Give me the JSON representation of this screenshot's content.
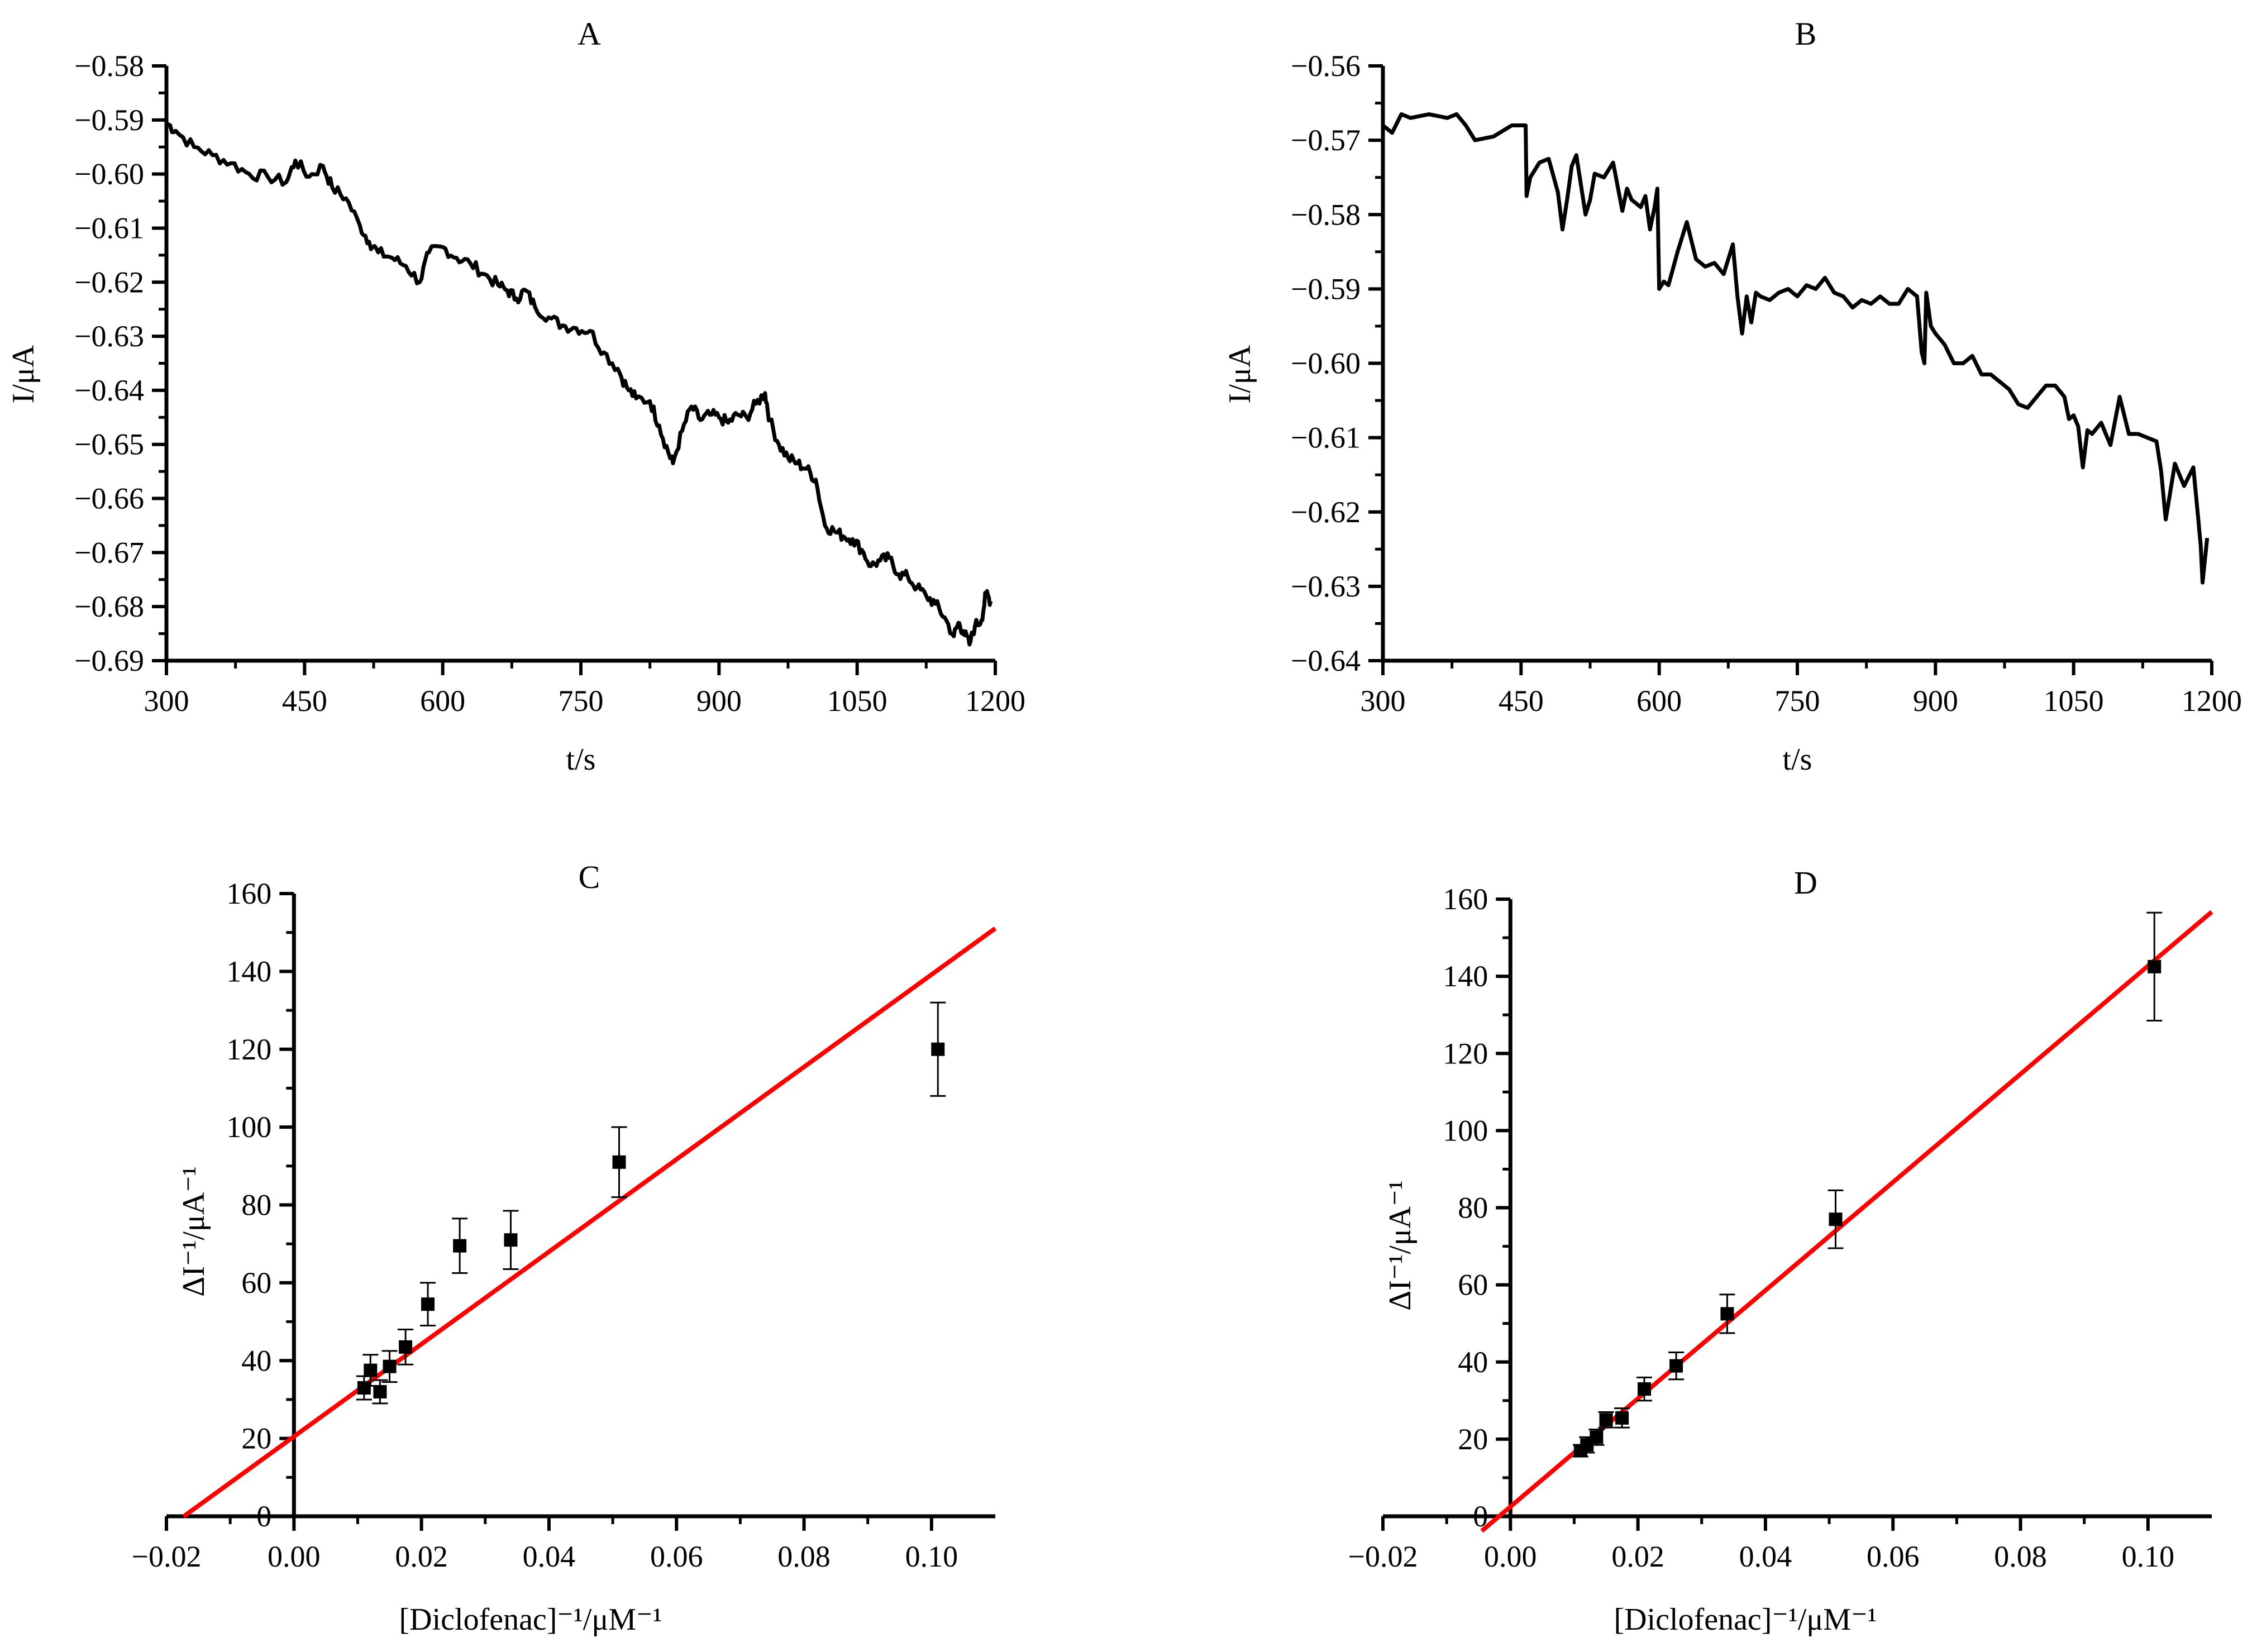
{
  "figure": {
    "panels": [
      "A",
      "B",
      "C",
      "D"
    ]
  },
  "chart_data": [
    {
      "id": "A",
      "type": "line",
      "title": "A",
      "xlabel": "t/s",
      "ylabel": "I/μA",
      "xlim": [
        300,
        1200
      ],
      "ylim": [
        -0.69,
        -0.58
      ],
      "xticks": [
        300,
        450,
        600,
        750,
        900,
        1050,
        1200
      ],
      "xtick_labels": [
        "300",
        "450",
        "600",
        "750",
        "900",
        "1050",
        "1200"
      ],
      "yticks": [
        -0.58,
        -0.59,
        -0.6,
        -0.61,
        -0.62,
        -0.63,
        -0.64,
        -0.65,
        -0.66,
        -0.67,
        -0.68,
        -0.69
      ],
      "ytick_labels": [
        "−0.58",
        "−0.59",
        "−0.60",
        "−0.61",
        "−0.62",
        "−0.63",
        "−0.64",
        "−0.65",
        "−0.66",
        "−0.67",
        "−0.68",
        "−0.69"
      ],
      "series": [
        {
          "name": "current",
          "color": "#000000",
          "x": [
            300,
            310,
            330,
            350,
            370,
            390,
            410,
            430,
            440,
            455,
            470,
            480,
            495,
            510,
            520,
            530,
            545,
            560,
            575,
            585,
            600,
            615,
            630,
            645,
            660,
            670,
            680,
            690,
            700,
            715,
            730,
            745,
            760,
            775,
            790,
            800,
            810,
            825,
            835,
            845,
            850,
            860,
            870,
            880,
            890,
            900,
            910,
            920,
            930,
            940,
            950,
            955,
            965,
            975,
            985,
            995,
            1005,
            1015,
            1025,
            1035,
            1045,
            1055,
            1065,
            1075,
            1085,
            1095,
            1105,
            1115,
            1125,
            1135,
            1145,
            1155,
            1160,
            1165,
            1172,
            1178,
            1185,
            1190,
            1195
          ],
          "y": [
            -0.5905,
            -0.592,
            -0.595,
            -0.5965,
            -0.598,
            -0.6,
            -0.6005,
            -0.6015,
            -0.5975,
            -0.6005,
            -0.5985,
            -0.6025,
            -0.6045,
            -0.6095,
            -0.6125,
            -0.6145,
            -0.6155,
            -0.617,
            -0.62,
            -0.6145,
            -0.6135,
            -0.6155,
            -0.6165,
            -0.6185,
            -0.6205,
            -0.6215,
            -0.623,
            -0.6215,
            -0.6245,
            -0.6265,
            -0.628,
            -0.6285,
            -0.629,
            -0.633,
            -0.636,
            -0.6395,
            -0.6415,
            -0.642,
            -0.6465,
            -0.6515,
            -0.6535,
            -0.6475,
            -0.643,
            -0.6455,
            -0.6445,
            -0.645,
            -0.646,
            -0.6445,
            -0.645,
            -0.6425,
            -0.6405,
            -0.6455,
            -0.65,
            -0.6525,
            -0.6535,
            -0.6545,
            -0.6565,
            -0.665,
            -0.666,
            -0.667,
            -0.6675,
            -0.6695,
            -0.6725,
            -0.6715,
            -0.671,
            -0.674,
            -0.6745,
            -0.6765,
            -0.678,
            -0.6795,
            -0.682,
            -0.6855,
            -0.683,
            -0.6845,
            -0.687,
            -0.6835,
            -0.6825,
            -0.6775,
            -0.679
          ]
        }
      ]
    },
    {
      "id": "B",
      "type": "line",
      "title": "B",
      "xlabel": "t/s",
      "ylabel": "I/μA",
      "xlim": [
        300,
        1200
      ],
      "ylim": [
        -0.64,
        -0.56
      ],
      "xticks": [
        300,
        450,
        600,
        750,
        900,
        1050,
        1200
      ],
      "xtick_labels": [
        "300",
        "450",
        "600",
        "750",
        "900",
        "1050",
        "1200"
      ],
      "yticks": [
        -0.56,
        -0.57,
        -0.58,
        -0.59,
        -0.6,
        -0.61,
        -0.62,
        -0.63,
        -0.64
      ],
      "ytick_labels": [
        "−0.56",
        "−0.57",
        "−0.58",
        "−0.59",
        "−0.60",
        "−0.61",
        "−0.62",
        "−0.63",
        "−0.64"
      ],
      "series": [
        {
          "name": "current",
          "color": "#000000",
          "x": [
            300,
            310,
            320,
            330,
            350,
            370,
            380,
            390,
            400,
            420,
            440,
            455,
            456,
            460,
            470,
            480,
            490,
            495,
            500,
            505,
            510,
            520,
            525,
            530,
            540,
            550,
            560,
            565,
            570,
            580,
            585,
            590,
            595,
            598,
            600,
            605,
            610,
            620,
            630,
            640,
            650,
            660,
            670,
            680,
            685,
            690,
            695,
            700,
            705,
            710,
            720,
            730,
            740,
            750,
            760,
            770,
            780,
            790,
            800,
            810,
            820,
            830,
            840,
            850,
            860,
            870,
            880,
            885,
            888,
            890,
            895,
            900,
            910,
            920,
            930,
            940,
            950,
            960,
            970,
            980,
            990,
            1000,
            1010,
            1020,
            1030,
            1040,
            1045,
            1050,
            1055,
            1060,
            1065,
            1070,
            1080,
            1090,
            1100,
            1110,
            1120,
            1130,
            1140,
            1145,
            1150,
            1160,
            1170,
            1180,
            1185,
            1188,
            1190,
            1195
          ],
          "y": [
            -0.568,
            -0.569,
            -0.5665,
            -0.567,
            -0.5665,
            -0.567,
            -0.5665,
            -0.568,
            -0.57,
            -0.5695,
            -0.568,
            -0.568,
            -0.5775,
            -0.575,
            -0.573,
            -0.5725,
            -0.577,
            -0.582,
            -0.578,
            -0.5735,
            -0.572,
            -0.58,
            -0.578,
            -0.5745,
            -0.575,
            -0.573,
            -0.5795,
            -0.5765,
            -0.578,
            -0.579,
            -0.5775,
            -0.582,
            -0.579,
            -0.5765,
            -0.59,
            -0.589,
            -0.5895,
            -0.585,
            -0.581,
            -0.586,
            -0.587,
            -0.5865,
            -0.588,
            -0.584,
            -0.591,
            -0.596,
            -0.591,
            -0.5945,
            -0.5905,
            -0.591,
            -0.5915,
            -0.5905,
            -0.59,
            -0.591,
            -0.5895,
            -0.59,
            -0.5885,
            -0.5905,
            -0.591,
            -0.5925,
            -0.5915,
            -0.592,
            -0.591,
            -0.592,
            -0.592,
            -0.59,
            -0.591,
            -0.5985,
            -0.6,
            -0.5905,
            -0.595,
            -0.596,
            -0.5975,
            -0.6,
            -0.6,
            -0.599,
            -0.6015,
            -0.6015,
            -0.6025,
            -0.6035,
            -0.6055,
            -0.606,
            -0.6045,
            -0.603,
            -0.603,
            -0.6045,
            -0.6075,
            -0.607,
            -0.6085,
            -0.614,
            -0.609,
            -0.6095,
            -0.608,
            -0.611,
            -0.6045,
            -0.6095,
            -0.6095,
            -0.61,
            -0.6105,
            -0.6145,
            -0.621,
            -0.6135,
            -0.6165,
            -0.614,
            -0.6205,
            -0.6245,
            -0.6295,
            -0.6235
          ]
        }
      ]
    },
    {
      "id": "C",
      "type": "scatter",
      "title": "C",
      "xlabel": "[Diclofenac]⁻¹/μM⁻¹",
      "ylabel": "ΔI⁻¹/μA⁻¹",
      "xlim": [
        -0.02,
        0.11
      ],
      "ylim": [
        0,
        160
      ],
      "xticks": [
        -0.02,
        0.0,
        0.02,
        0.04,
        0.06,
        0.08,
        0.1
      ],
      "xtick_labels": [
        "−0.02",
        "0.00",
        "0.02",
        "0.04",
        "0.06",
        "0.08",
        "0.10"
      ],
      "yticks": [
        0,
        20,
        40,
        60,
        80,
        100,
        120,
        140,
        160
      ],
      "ytick_labels": [
        "0",
        "20",
        "40",
        "60",
        "80",
        "100",
        "120",
        "140",
        "160"
      ],
      "points": [
        {
          "x": 0.011,
          "y": 33,
          "err": 3
        },
        {
          "x": 0.012,
          "y": 37.5,
          "err": 4
        },
        {
          "x": 0.0135,
          "y": 32,
          "err": 3
        },
        {
          "x": 0.015,
          "y": 38.5,
          "err": 4
        },
        {
          "x": 0.0175,
          "y": 43.5,
          "err": 4.5
        },
        {
          "x": 0.021,
          "y": 54.5,
          "err": 5.5
        },
        {
          "x": 0.026,
          "y": 69.5,
          "err": 7
        },
        {
          "x": 0.034,
          "y": 71,
          "err": 7.5
        },
        {
          "x": 0.051,
          "y": 91,
          "err": 9
        },
        {
          "x": 0.101,
          "y": 120,
          "err": 12
        }
      ],
      "fit": {
        "slope": 1187,
        "intercept": 20.5,
        "x_range": [
          -0.0173,
          0.11
        ],
        "color": "#ff0000"
      }
    },
    {
      "id": "D",
      "type": "scatter",
      "title": "D",
      "xlabel": "[Diclofenac]⁻¹/μM⁻¹",
      "ylabel": "ΔI⁻¹/μA⁻¹",
      "xlim": [
        -0.02,
        0.11
      ],
      "ylim": [
        0,
        160
      ],
      "xticks": [
        -0.02,
        0.0,
        0.02,
        0.04,
        0.06,
        0.08,
        0.1
      ],
      "xtick_labels": [
        "−0.02",
        "0.00",
        "0.02",
        "0.04",
        "0.06",
        "0.08",
        "0.10"
      ],
      "yticks": [
        0,
        20,
        40,
        60,
        80,
        100,
        120,
        140,
        160
      ],
      "ytick_labels": [
        "0",
        "20",
        "40",
        "60",
        "80",
        "100",
        "120",
        "140",
        "160"
      ],
      "points": [
        {
          "x": 0.011,
          "y": 17,
          "err": 1.5
        },
        {
          "x": 0.012,
          "y": 18.5,
          "err": 2
        },
        {
          "x": 0.0135,
          "y": 20.5,
          "err": 2
        },
        {
          "x": 0.015,
          "y": 25,
          "err": 2
        },
        {
          "x": 0.0175,
          "y": 25.5,
          "err": 2.5
        },
        {
          "x": 0.021,
          "y": 33,
          "err": 3
        },
        {
          "x": 0.026,
          "y": 39,
          "err": 3.5
        },
        {
          "x": 0.034,
          "y": 52.5,
          "err": 5
        },
        {
          "x": 0.051,
          "y": 77,
          "err": 7.5
        },
        {
          "x": 0.101,
          "y": 142.5,
          "err": 14
        }
      ],
      "fit": {
        "slope": 1402,
        "intercept": 2.5,
        "x_range": [
          -0.0045,
          0.11
        ],
        "color": "#ff0000"
      }
    }
  ]
}
